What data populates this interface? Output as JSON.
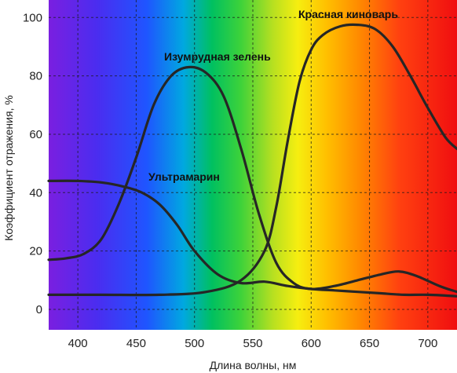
{
  "chart_data": {
    "type": "line",
    "xlabel": "Длина волны, нм",
    "ylabel": "Коэффициент отражения, %",
    "xlim": [
      375,
      725
    ],
    "ylim": [
      -7,
      106
    ],
    "x_ticks": [
      400,
      450,
      500,
      550,
      600,
      650,
      700
    ],
    "y_ticks": [
      0,
      20,
      40,
      60,
      80,
      100
    ],
    "grid": true,
    "background": "visible spectrum gradient (violet to red)",
    "series": [
      {
        "name": "Ультрамарин",
        "x": [
          375,
          400,
          420,
          440,
          455,
          470,
          485,
          500,
          520,
          540,
          560,
          580,
          600,
          620,
          640,
          660,
          680,
          700,
          725
        ],
        "y": [
          44,
          44,
          43.5,
          42,
          40,
          36,
          29,
          20,
          12,
          9,
          9.5,
          8,
          7,
          6.5,
          6,
          5.5,
          5,
          5,
          4.5
        ]
      },
      {
        "name": "Изумрудная зелень",
        "x": [
          375,
          390,
          405,
          420,
          435,
          450,
          465,
          480,
          495,
          510,
          525,
          540,
          555,
          570,
          585,
          600,
          620,
          640,
          660,
          675,
          690,
          710,
          725
        ],
        "y": [
          17,
          17.5,
          19,
          24,
          36,
          52,
          70,
          80,
          83,
          81,
          73,
          55,
          33,
          16,
          9,
          7,
          8,
          10,
          12,
          13,
          11.5,
          8,
          6
        ]
      },
      {
        "name": "Красная киноварь",
        "x": [
          375,
          420,
          470,
          510,
          540,
          560,
          570,
          580,
          590,
          600,
          610,
          625,
          640,
          655,
          670,
          685,
          700,
          715,
          725
        ],
        "y": [
          5,
          5,
          5,
          6,
          10,
          20,
          35,
          58,
          78,
          89,
          94,
          97,
          97.5,
          96,
          90,
          80,
          69,
          59,
          55
        ]
      }
    ],
    "annotations": [
      "Красная киноварь",
      "Изумрудная зелень",
      "Ультрамарин"
    ]
  }
}
